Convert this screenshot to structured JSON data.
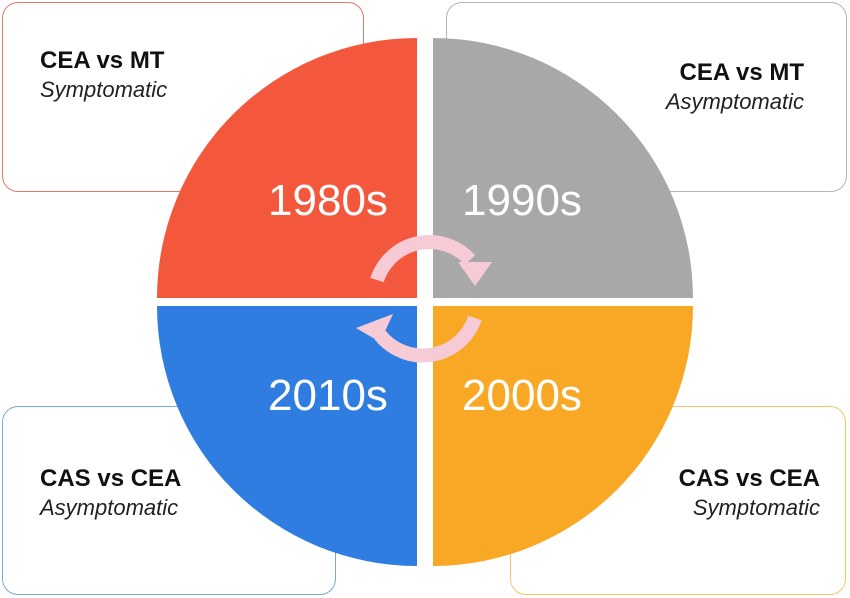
{
  "quadrants": [
    {
      "decade": "1980s",
      "title": "CEA vs MT",
      "subtitle": "Symptomatic",
      "color": "#f4583c"
    },
    {
      "decade": "1990s",
      "title": "CEA vs MT",
      "subtitle": "Asymptomatic",
      "color": "#a8a8a8"
    },
    {
      "decade": "2000s",
      "title": "CAS vs CEA",
      "subtitle": "Symptomatic",
      "color": "#f9a826"
    },
    {
      "decade": "2010s",
      "title": "CAS vs CEA",
      "subtitle": "Asymptomatic",
      "color": "#2f7de0"
    }
  ],
  "cycle_arrow_color": "#f6cbd6"
}
